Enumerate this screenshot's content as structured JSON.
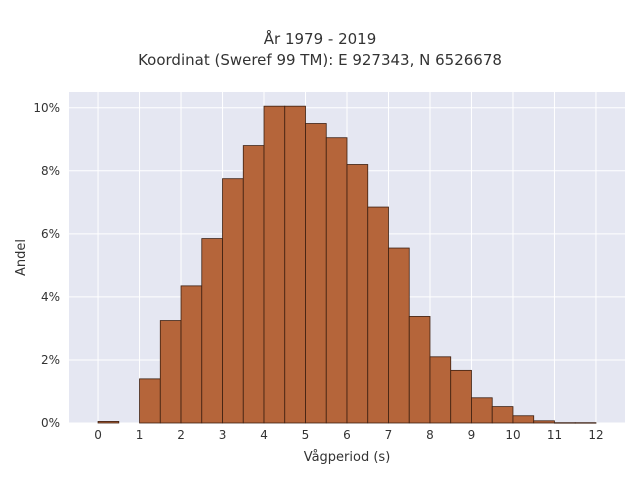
{
  "chart_data": {
    "type": "bar",
    "title": "År 1979 - 2019",
    "subtitle": "Koordinat (Sweref 99 TM): E 927343, N 6526678",
    "xlabel": "Vågperiod (s)",
    "ylabel": "Andel",
    "xlim": [
      -0.7,
      12.7
    ],
    "ylim": [
      0,
      0.105
    ],
    "x_ticks": [
      0,
      1,
      2,
      3,
      4,
      5,
      6,
      7,
      8,
      9,
      10,
      11,
      12
    ],
    "y_ticks": [
      0,
      0.02,
      0.04,
      0.06,
      0.08,
      0.1
    ],
    "y_tick_labels": [
      "0%",
      "2%",
      "4%",
      "6%",
      "8%",
      "10%"
    ],
    "grid": true,
    "bin_width": 0.5,
    "bins": [
      {
        "x0": 0.0,
        "x1": 0.5,
        "value": 0.0005
      },
      {
        "x0": 1.0,
        "x1": 1.5,
        "value": 0.014
      },
      {
        "x0": 1.5,
        "x1": 2.0,
        "value": 0.0325
      },
      {
        "x0": 2.0,
        "x1": 2.5,
        "value": 0.0435
      },
      {
        "x0": 2.5,
        "x1": 3.0,
        "value": 0.0585
      },
      {
        "x0": 3.0,
        "x1": 3.5,
        "value": 0.0775
      },
      {
        "x0": 3.5,
        "x1": 4.0,
        "value": 0.088
      },
      {
        "x0": 4.0,
        "x1": 4.5,
        "value": 0.1005
      },
      {
        "x0": 4.5,
        "x1": 5.0,
        "value": 0.1005
      },
      {
        "x0": 5.0,
        "x1": 5.5,
        "value": 0.095
      },
      {
        "x0": 5.5,
        "x1": 6.0,
        "value": 0.0905
      },
      {
        "x0": 6.0,
        "x1": 6.5,
        "value": 0.082
      },
      {
        "x0": 6.5,
        "x1": 7.0,
        "value": 0.0685
      },
      {
        "x0": 7.0,
        "x1": 7.5,
        "value": 0.0555
      },
      {
        "x0": 7.5,
        "x1": 8.0,
        "value": 0.0338
      },
      {
        "x0": 8.0,
        "x1": 8.5,
        "value": 0.021
      },
      {
        "x0": 8.5,
        "x1": 9.0,
        "value": 0.0167
      },
      {
        "x0": 9.0,
        "x1": 9.5,
        "value": 0.008
      },
      {
        "x0": 9.5,
        "x1": 10.0,
        "value": 0.0052
      },
      {
        "x0": 10.0,
        "x1": 10.5,
        "value": 0.0023
      },
      {
        "x0": 10.5,
        "x1": 11.0,
        "value": 0.0007
      },
      {
        "x0": 11.0,
        "x1": 11.5,
        "value": 0.0001
      },
      {
        "x0": 11.5,
        "x1": 12.0,
        "value": 0.0001
      }
    ],
    "colors": {
      "bar_fill": "#b5653a",
      "bar_edge": "#3d1f10",
      "plot_background": "#e5e7f2",
      "grid": "#ffffff"
    }
  }
}
